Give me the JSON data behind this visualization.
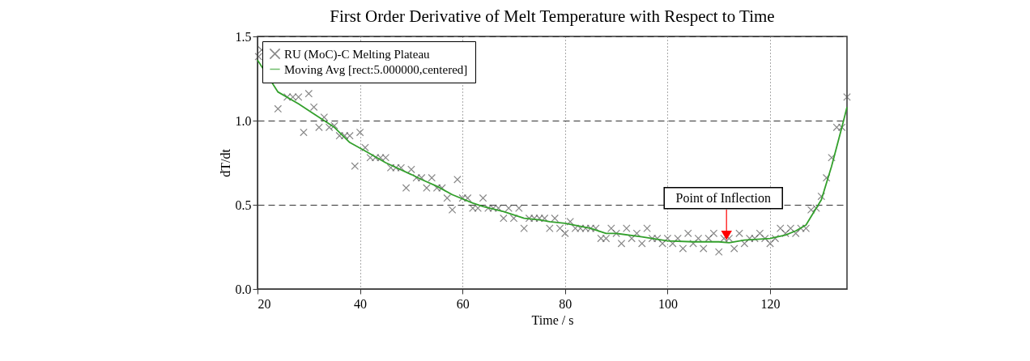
{
  "chart_data": {
    "type": "scatter",
    "title": "First Order Derivative of Melt Temperature with Respect to Time",
    "xlabel": "Time / s",
    "ylabel": "dT/dt",
    "xlim": [
      20,
      135
    ],
    "xticks": [
      20,
      40,
      60,
      80,
      100,
      120
    ],
    "ylim": [
      0,
      1.5
    ],
    "yticks": [
      {
        "value": 0,
        "label": "0.0"
      },
      0.5,
      {
        "value": 1,
        "label": "1.0"
      },
      1.5
    ],
    "grid": true,
    "legend": "top left",
    "annotations": [
      {
        "text": "Point of Inflection",
        "x": 111.5,
        "y": 0.28
      }
    ],
    "series": [
      {
        "name": "RU (MoC)-C Melting Plateau",
        "marker": "cross",
        "color": "#555555",
        "x": [
          20.2,
          20.8,
          24,
          25.8,
          26.9,
          28,
          29,
          30,
          31,
          32,
          33,
          34,
          35,
          36,
          37,
          38,
          39,
          40,
          41,
          42,
          43,
          44,
          45,
          46,
          47,
          48,
          49,
          50,
          51,
          52,
          53,
          54,
          55,
          56,
          57,
          58,
          59,
          60,
          61,
          62,
          63,
          64,
          65,
          66,
          67,
          68,
          69,
          70,
          71,
          72,
          73,
          74,
          75,
          76,
          77,
          78,
          79,
          80,
          81,
          82,
          83,
          84,
          85,
          86,
          87,
          88,
          89,
          90,
          91,
          92,
          93,
          94,
          95,
          96,
          97,
          98,
          99,
          100,
          101,
          102,
          103,
          104,
          105,
          106,
          107,
          108,
          109,
          110,
          111,
          112,
          113,
          114,
          115,
          116,
          117,
          118,
          119,
          120,
          121,
          122,
          123,
          124,
          125,
          126,
          127,
          128,
          129,
          130,
          131,
          132,
          133,
          134,
          135
        ],
        "values": [
          1.38,
          1.42,
          1.07,
          1.14,
          1.14,
          1.14,
          0.93,
          1.16,
          1.08,
          0.96,
          1.02,
          0.96,
          0.97,
          0.91,
          0.91,
          0.91,
          0.73,
          0.93,
          0.84,
          0.78,
          0.78,
          0.78,
          0.78,
          0.72,
          0.72,
          0.72,
          0.6,
          0.71,
          0.66,
          0.66,
          0.6,
          0.66,
          0.6,
          0.6,
          0.54,
          0.47,
          0.65,
          0.54,
          0.54,
          0.48,
          0.48,
          0.54,
          0.48,
          0.48,
          0.48,
          0.42,
          0.48,
          0.42,
          0.48,
          0.36,
          0.42,
          0.42,
          0.42,
          0.42,
          0.36,
          0.42,
          0.36,
          0.33,
          0.4,
          0.36,
          0.36,
          0.36,
          0.36,
          0.36,
          0.3,
          0.3,
          0.36,
          0.33,
          0.27,
          0.36,
          0.3,
          0.33,
          0.27,
          0.36,
          0.3,
          0.3,
          0.27,
          0.3,
          0.27,
          0.3,
          0.24,
          0.33,
          0.27,
          0.3,
          0.24,
          0.3,
          0.33,
          0.22,
          0.3,
          0.3,
          0.24,
          0.33,
          0.27,
          0.3,
          0.3,
          0.33,
          0.3,
          0.27,
          0.3,
          0.36,
          0.33,
          0.36,
          0.33,
          0.36,
          0.36,
          0.47,
          0.48,
          0.55,
          0.66,
          0.78,
          0.96,
          0.96,
          1.14
        ]
      },
      {
        "name": "Moving Avg [rect:5.000000,centered]",
        "type": "line",
        "marker": "none",
        "line_style": "solid",
        "color": "#33a02c",
        "x": [
          20,
          24,
          28,
          31,
          35,
          38,
          41,
          45,
          50,
          52,
          55,
          58,
          62,
          64,
          68,
          72,
          75,
          77,
          80,
          85,
          88,
          90,
          95,
          100,
          105,
          110,
          112,
          115,
          120,
          123,
          125,
          127,
          128,
          130,
          132,
          134,
          135
        ],
        "values": [
          1.36,
          1.17,
          1.1,
          1.04,
          0.96,
          0.87,
          0.82,
          0.75,
          0.68,
          0.65,
          0.61,
          0.56,
          0.51,
          0.49,
          0.46,
          0.42,
          0.41,
          0.4,
          0.39,
          0.36,
          0.33,
          0.33,
          0.31,
          0.285,
          0.28,
          0.28,
          0.275,
          0.29,
          0.3,
          0.32,
          0.345,
          0.38,
          0.43,
          0.53,
          0.73,
          0.96,
          1.08
        ]
      }
    ]
  }
}
